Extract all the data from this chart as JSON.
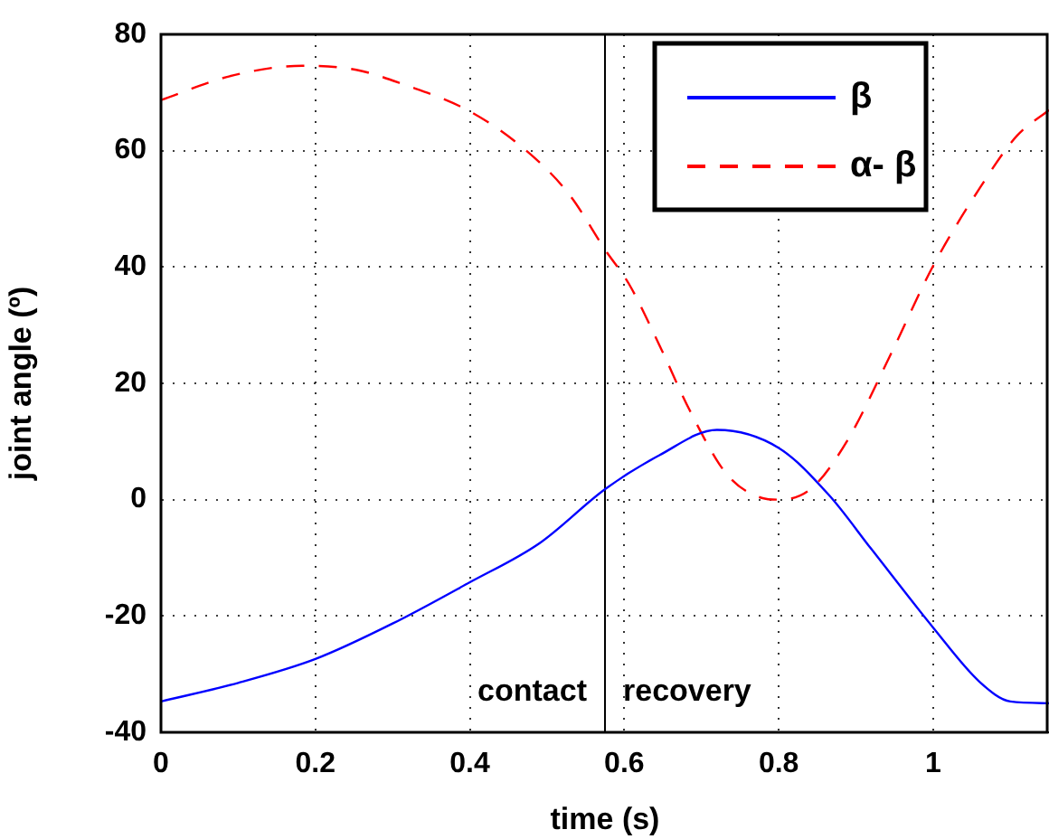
{
  "chart_data": {
    "type": "line",
    "xlabel": "time (s)",
    "ylabel": "joint angle (º)",
    "xlim": [
      0,
      1.15
    ],
    "xticks": [
      0,
      0.2,
      0.4,
      0.6,
      0.8,
      1
    ],
    "ylim": [
      -40,
      80
    ],
    "yticks": [
      -40,
      -20,
      0,
      20,
      40,
      60,
      80
    ],
    "grid": true,
    "legend": "top right",
    "marker": "none",
    "series": [
      {
        "name": "β",
        "color": "#0000ff",
        "line_style": "solid",
        "x": [
          0,
          0.1,
          0.2,
          0.3,
          0.4,
          0.49,
          0.576,
          0.645,
          0.72,
          0.8,
          0.865,
          0.92,
          1.0,
          1.06,
          1.1,
          1.15
        ],
        "values": [
          -34.7,
          -31.5,
          -27.4,
          -21.3,
          -14.2,
          -7.5,
          1.9,
          7.6,
          12.0,
          8.9,
          0.8,
          -8.5,
          -22,
          -31.3,
          -34.7,
          -35
        ]
      },
      {
        "name": "α- β",
        "color": "#ff0000",
        "line_style": "dashed",
        "x": [
          0,
          0.089,
          0.183,
          0.253,
          0.316,
          0.395,
          0.465,
          0.528,
          0.576,
          0.606,
          0.645,
          0.685,
          0.732,
          0.778,
          0.8,
          0.842,
          0.889,
          0.944,
          1.0,
          1.061,
          1.108,
          1.15
        ],
        "values": [
          68.7,
          72.8,
          74.6,
          73.9,
          71.3,
          67.1,
          60.9,
          52.6,
          42.8,
          37.1,
          26.7,
          15.3,
          4.5,
          0.3,
          0,
          1.9,
          10.2,
          24.7,
          40.2,
          53.7,
          62.5,
          67
        ]
      }
    ],
    "ref_lines": [
      {
        "axis": "x",
        "value": 0.575,
        "color": "#000000"
      }
    ],
    "annotations": [
      "contact",
      "recovery"
    ]
  }
}
